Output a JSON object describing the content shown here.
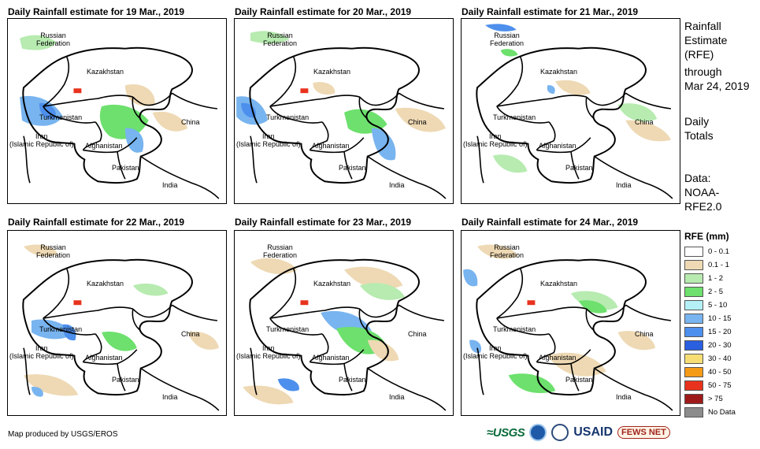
{
  "maps": [
    {
      "title": "Daily Rainfall estimate for 19 Mar., 2019"
    },
    {
      "title": "Daily Rainfall estimate for 20 Mar., 2019"
    },
    {
      "title": "Daily Rainfall estimate for 21 Mar., 2019"
    },
    {
      "title": "Daily Rainfall estimate for 22 Mar., 2019"
    },
    {
      "title": "Daily Rainfall estimate for 23 Mar., 2019"
    },
    {
      "title": "Daily Rainfall estimate for 24 Mar., 2019"
    }
  ],
  "map_labels": {
    "russia_line1": "Russian",
    "russia_line2": "Federation",
    "kazakhstan": "Kazakhstan",
    "turkmenistan": "Turkmenistan",
    "iran_line1": "Iran",
    "iran_line2": "(Islamic Republic of)",
    "afghanistan": "Afghanistan",
    "china": "China",
    "pakistan": "Pakistan",
    "india": "India"
  },
  "sidebar": {
    "heading_line1": "Rainfall",
    "heading_line2": "Estimate",
    "heading_line3": "(RFE)",
    "through": "through",
    "date": "Mar 24, 2019",
    "daily_line1": "Daily",
    "daily_line2": "Totals",
    "data_line1": "Data:",
    "data_line2": "NOAA-",
    "data_line3": "RFE2.0"
  },
  "legend": {
    "title": "RFE (mm)",
    "items": [
      {
        "label": "0 - 0.1",
        "color": "#ffffff"
      },
      {
        "label": "0.1 - 1",
        "color": "#eed9b4"
      },
      {
        "label": "1 - 2",
        "color": "#b7ebb0"
      },
      {
        "label": "2 - 5",
        "color": "#6de06d"
      },
      {
        "label": "5 - 10",
        "color": "#b4f0f6"
      },
      {
        "label": "10 - 15",
        "color": "#78b4ef"
      },
      {
        "label": "15 - 20",
        "color": "#4d8fec"
      },
      {
        "label": "20 - 30",
        "color": "#2a5fe0"
      },
      {
        "label": "30 - 40",
        "color": "#f7de74"
      },
      {
        "label": "40 - 50",
        "color": "#f59a17"
      },
      {
        "label": "50 - 75",
        "color": "#e8321d"
      },
      {
        "label": "> 75",
        "color": "#9e1a1a"
      },
      {
        "label": "No Data",
        "color": "#8c8c8c"
      }
    ]
  },
  "footer": {
    "credit": "Map produced by USGS/EROS"
  },
  "logos": {
    "usgs": "≈USGS",
    "usaid": "USAID",
    "fews": "FEWS NET"
  }
}
